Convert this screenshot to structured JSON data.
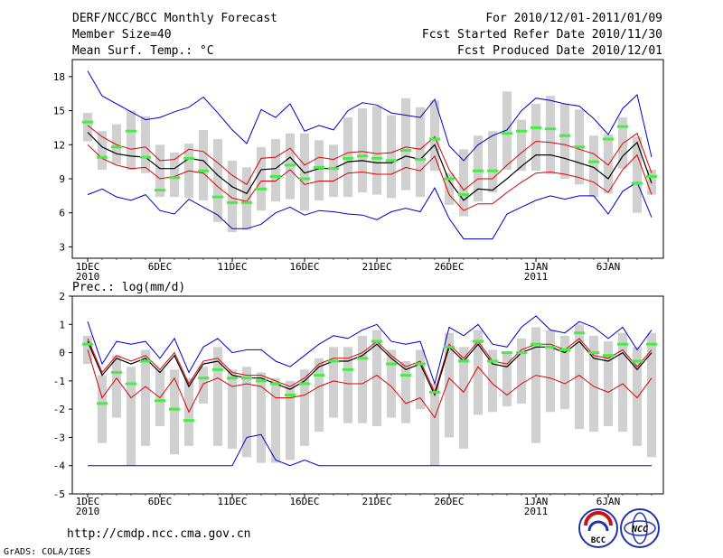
{
  "header": {
    "title": "DERF/NCC/BCC Monthly Forecast",
    "member_size": "Member Size=40",
    "variable": "Mean Surf. Temp.: °C",
    "period": "For 2010/12/01-2011/01/09",
    "start_date": "Fcst Started Refer Date 2010/11/30",
    "produced_date": "Fcst Produced Date 2010/12/01"
  },
  "footer": {
    "url": "http://cmdp.ncc.cma.gov.cn",
    "credit": "GrADS: COLA/IGES",
    "logo_bcc_text": "BCC",
    "logo_ncc_text": "NCC"
  },
  "colors": {
    "box": "#d0d0d0",
    "median": "#44ee44",
    "mean": "#000000",
    "sd": "#dd0000",
    "extreme": "#0000cc"
  },
  "x_axis": {
    "ticks": [
      {
        "day": 1,
        "label": "1DEC",
        "sub": "2010"
      },
      {
        "day": 6,
        "label": "6DEC",
        "sub": ""
      },
      {
        "day": 11,
        "label": "11DEC",
        "sub": ""
      },
      {
        "day": 16,
        "label": "16DEC",
        "sub": ""
      },
      {
        "day": 21,
        "label": "21DEC",
        "sub": ""
      },
      {
        "day": 26,
        "label": "26DEC",
        "sub": ""
      },
      {
        "day": 32,
        "label": "1JAN",
        "sub": "2011"
      },
      {
        "day": 37,
        "label": "6JAN",
        "sub": ""
      }
    ]
  },
  "chart_data": [
    {
      "type": "line",
      "title": "Mean Surf. Temp.: °C",
      "xlabel": "",
      "ylabel": "°C",
      "x": [
        1,
        2,
        3,
        4,
        5,
        6,
        7,
        8,
        9,
        10,
        11,
        12,
        13,
        14,
        15,
        16,
        17,
        18,
        19,
        20,
        21,
        22,
        23,
        24,
        25,
        26,
        27,
        28,
        29,
        30,
        31,
        32,
        33,
        34,
        35,
        36,
        37,
        38,
        39,
        40
      ],
      "ylim": [
        2,
        19.5
      ],
      "yticks": [
        3,
        6,
        9,
        12,
        15,
        18
      ],
      "series": [
        {
          "name": "ensemble mean",
          "values": [
            13.1,
            11.8,
            11.2,
            11.0,
            10.9,
            9.9,
            9.9,
            10.8,
            10.6,
            9.3,
            8.3,
            7.7,
            9.8,
            9.9,
            10.9,
            9.5,
            9.9,
            9.9,
            10.5,
            10.6,
            10.4,
            10.4,
            11.0,
            10.7,
            12.0,
            8.8,
            7.1,
            8.1,
            8.0,
            9.0,
            10.1,
            11.1,
            11.1,
            10.8,
            10.4,
            10.0,
            9.0,
            11.0,
            12.2,
            8.6
          ]
        },
        {
          "name": "upper std",
          "values": [
            13.7,
            12.7,
            12.0,
            11.6,
            11.8,
            10.6,
            10.7,
            11.6,
            11.4,
            10.4,
            9.3,
            8.5,
            10.8,
            10.9,
            11.7,
            10.2,
            10.9,
            10.7,
            11.3,
            11.4,
            11.2,
            11.3,
            11.8,
            11.6,
            12.7,
            9.8,
            8.0,
            9.0,
            9.0,
            10.2,
            11.3,
            12.3,
            12.2,
            12.0,
            11.6,
            11.2,
            10.2,
            12.1,
            13.0,
            9.5
          ]
        },
        {
          "name": "lower std",
          "values": [
            12.0,
            10.8,
            10.2,
            9.9,
            10.0,
            9.0,
            9.2,
            9.7,
            9.5,
            8.3,
            7.3,
            7.0,
            8.8,
            8.8,
            9.8,
            8.5,
            8.8,
            8.8,
            9.5,
            9.6,
            9.4,
            9.4,
            10.0,
            9.7,
            11.0,
            7.6,
            6.2,
            6.8,
            6.8,
            7.8,
            8.7,
            9.5,
            9.6,
            9.4,
            9.1,
            8.7,
            7.8,
            9.8,
            11.1,
            7.6
          ]
        },
        {
          "name": "maximum",
          "values": [
            18.5,
            16.3,
            15.6,
            14.9,
            14.2,
            14.4,
            14.9,
            15.3,
            16.2,
            14.8,
            13.3,
            12.1,
            15.1,
            14.4,
            15.6,
            13.2,
            13.7,
            13.3,
            15.0,
            15.7,
            15.5,
            14.8,
            14.6,
            14.4,
            16.0,
            11.9,
            10.6,
            12.0,
            12.8,
            13.3,
            15.0,
            16.1,
            15.9,
            15.6,
            15.4,
            14.3,
            12.9,
            15.2,
            16.4,
            10.9
          ]
        },
        {
          "name": "minimum",
          "values": [
            7.6,
            8.1,
            7.4,
            7.1,
            7.6,
            6.2,
            5.9,
            7.2,
            6.5,
            5.8,
            4.6,
            4.6,
            5.0,
            6.0,
            6.5,
            5.8,
            6.2,
            6.1,
            5.9,
            5.8,
            5.4,
            6.1,
            6.4,
            6.1,
            8.2,
            5.5,
            3.7,
            3.7,
            3.7,
            5.9,
            6.5,
            7.1,
            7.5,
            7.2,
            7.5,
            7.5,
            5.9,
            7.9,
            8.7,
            5.6
          ]
        },
        {
          "name": "median",
          "values": [
            14.0,
            10.9,
            11.8,
            13.2,
            10.9,
            8.0,
            9.1,
            10.8,
            9.7,
            7.4,
            6.9,
            6.9,
            8.1,
            9.2,
            10.2,
            9.0,
            10.0,
            9.9,
            10.8,
            11.0,
            10.8,
            10.6,
            11.5,
            10.7,
            12.5,
            9.0,
            7.6,
            9.7,
            9.7,
            13.0,
            13.2,
            13.5,
            13.4,
            12.8,
            11.8,
            10.5,
            12.5,
            13.6,
            8.6,
            9.2
          ]
        },
        {
          "name": "box upper",
          "values": [
            14.8,
            13.2,
            13.8,
            15.0,
            14.5,
            12.0,
            11.3,
            12.1,
            13.3,
            12.5,
            10.6,
            10.0,
            11.8,
            12.5,
            13.0,
            13.0,
            12.4,
            12.0,
            14.4,
            15.2,
            15.4,
            14.6,
            16.1,
            15.3,
            15.9,
            9.5,
            11.6,
            12.8,
            13.2,
            16.7,
            14.2,
            15.6,
            16.3,
            15.6,
            15.1,
            12.8,
            12.9,
            14.4,
            12.7,
            9.8
          ]
        },
        {
          "name": "box lower",
          "values": [
            12.3,
            9.8,
            10.3,
            9.8,
            9.5,
            7.4,
            7.4,
            7.3,
            7.1,
            5.2,
            4.3,
            4.5,
            6.2,
            7.0,
            7.2,
            6.2,
            7.1,
            7.4,
            7.4,
            7.8,
            7.6,
            7.3,
            8.0,
            7.4,
            9.7,
            6.7,
            5.7,
            7.0,
            7.8,
            9.8,
            9.7,
            9.7,
            9.4,
            9.0,
            8.5,
            7.4,
            7.7,
            9.9,
            6.0,
            7.6
          ]
        }
      ]
    },
    {
      "type": "line",
      "title": "Prec.: log(mm/d)",
      "xlabel": "",
      "ylabel": "log(mm/d)",
      "x": [
        1,
        2,
        3,
        4,
        5,
        6,
        7,
        8,
        9,
        10,
        11,
        12,
        13,
        14,
        15,
        16,
        17,
        18,
        19,
        20,
        21,
        22,
        23,
        24,
        25,
        26,
        27,
        28,
        29,
        30,
        31,
        32,
        33,
        34,
        35,
        36,
        37,
        38,
        39,
        40
      ],
      "ylim": [
        -5,
        2
      ],
      "yticks": [
        -5,
        -4,
        -3,
        -2,
        -1,
        0,
        1,
        2
      ],
      "series": [
        {
          "name": "ensemble mean",
          "values": [
            0.4,
            -0.8,
            -0.2,
            -0.4,
            -0.2,
            -0.7,
            -0.1,
            -1.2,
            -0.4,
            -0.3,
            -0.8,
            -0.9,
            -0.9,
            -1.1,
            -1.3,
            -1.0,
            -0.5,
            -0.3,
            -0.3,
            -0.1,
            0.3,
            -0.2,
            -0.6,
            -0.4,
            -1.5,
            0.2,
            -0.3,
            0.3,
            -0.4,
            -0.5,
            0.0,
            0.2,
            0.2,
            0.0,
            0.4,
            -0.2,
            -0.3,
            0.0,
            -0.6,
            0.0
          ]
        },
        {
          "name": "upper std",
          "values": [
            0.5,
            -0.7,
            -0.1,
            -0.3,
            -0.1,
            -0.6,
            0.0,
            -1.1,
            -0.3,
            -0.2,
            -0.7,
            -0.8,
            -0.8,
            -1.0,
            -1.2,
            -0.9,
            -0.4,
            -0.2,
            -0.2,
            0.0,
            0.4,
            -0.1,
            -0.5,
            -0.3,
            -1.4,
            0.3,
            -0.2,
            0.4,
            -0.3,
            -0.4,
            0.1,
            0.3,
            0.3,
            0.1,
            0.5,
            -0.1,
            -0.2,
            0.1,
            -0.5,
            0.1
          ]
        },
        {
          "name": "lower std",
          "values": [
            0.1,
            -1.6,
            -0.9,
            -1.6,
            -1.2,
            -1.6,
            -0.9,
            -2.1,
            -1.1,
            -0.9,
            -1.2,
            -1.1,
            -1.2,
            -1.6,
            -1.6,
            -1.5,
            -1.2,
            -1.0,
            -1.1,
            -1.1,
            -0.8,
            -1.2,
            -1.8,
            -1.6,
            -2.3,
            -0.9,
            -1.4,
            -0.5,
            -1.1,
            -1.5,
            -1.1,
            -0.8,
            -0.9,
            -1.1,
            -0.8,
            -1.2,
            -1.4,
            -1.1,
            -1.6,
            -0.9
          ]
        },
        {
          "name": "maximum",
          "values": [
            1.1,
            -0.4,
            0.4,
            0.3,
            0.4,
            -0.2,
            0.5,
            -0.7,
            0.2,
            0.5,
            0.0,
            0.1,
            0.1,
            -0.3,
            -0.5,
            -0.1,
            0.3,
            0.6,
            0.5,
            0.8,
            1.0,
            0.4,
            0.3,
            0.4,
            -1.1,
            0.9,
            0.6,
            1.0,
            0.3,
            0.2,
            0.9,
            1.3,
            0.8,
            0.7,
            1.1,
            0.9,
            0.5,
            0.9,
            0.1,
            0.8
          ]
        },
        {
          "name": "minimum",
          "values": [
            -4,
            -4,
            -4,
            -4,
            -4,
            -4,
            -4,
            -4,
            -4,
            -4,
            -4,
            -3,
            -2.9,
            -3.8,
            -4,
            -3.8,
            -4,
            -4,
            -4,
            -4,
            -4,
            -4,
            -4,
            -4,
            -4,
            -4,
            -4,
            -4,
            -4,
            -4,
            -4,
            -4,
            -4,
            -4,
            -4,
            -4,
            -4,
            -4,
            -4,
            -4
          ]
        },
        {
          "name": "median",
          "values": [
            0.3,
            -1.8,
            -0.7,
            -1.1,
            -0.3,
            -1.7,
            -2.0,
            -2.4,
            -0.9,
            -0.6,
            -0.9,
            -0.9,
            -1.0,
            -1.1,
            -1.5,
            -1.1,
            -0.8,
            -0.3,
            -0.6,
            -0.2,
            0.4,
            -0.4,
            -0.8,
            -0.4,
            -1.4,
            0.2,
            -0.3,
            0.4,
            -0.3,
            0.0,
            0.0,
            0.3,
            0.2,
            0.1,
            0.7,
            0.0,
            -0.1,
            0.3,
            -0.3,
            0.3
          ]
        },
        {
          "name": "box upper",
          "values": [
            0.6,
            -0.8,
            -0.1,
            -0.5,
            0.1,
            -0.6,
            -0.6,
            -0.9,
            -0.5,
            0.2,
            -0.6,
            -0.5,
            -0.7,
            -0.9,
            -1.0,
            -0.6,
            -0.2,
            0.2,
            0.2,
            0.6,
            0.8,
            0.1,
            -0.3,
            0.1,
            -1.1,
            0.7,
            0.2,
            0.8,
            0.1,
            0.0,
            0.5,
            0.9,
            0.8,
            0.6,
            1.0,
            0.6,
            0.4,
            0.7,
            0.2,
            0.7
          ]
        },
        {
          "name": "box lower",
          "values": [
            -0.4,
            -3.2,
            -2.3,
            -4.0,
            -3.3,
            -2.6,
            -3.6,
            -3.3,
            -1.8,
            -3.3,
            -3.4,
            -3.7,
            -3.9,
            -3.9,
            -3.8,
            -3.3,
            -2.8,
            -2.3,
            -2.5,
            -2.5,
            -2.6,
            -2.3,
            -2.5,
            -2.0,
            -4.0,
            -3.0,
            -3.4,
            -2.2,
            -2.1,
            -1.9,
            -1.8,
            -3.2,
            -2.1,
            -2.0,
            -2.7,
            -2.8,
            -2.6,
            -2.8,
            -3.3,
            -3.7
          ]
        }
      ]
    }
  ]
}
